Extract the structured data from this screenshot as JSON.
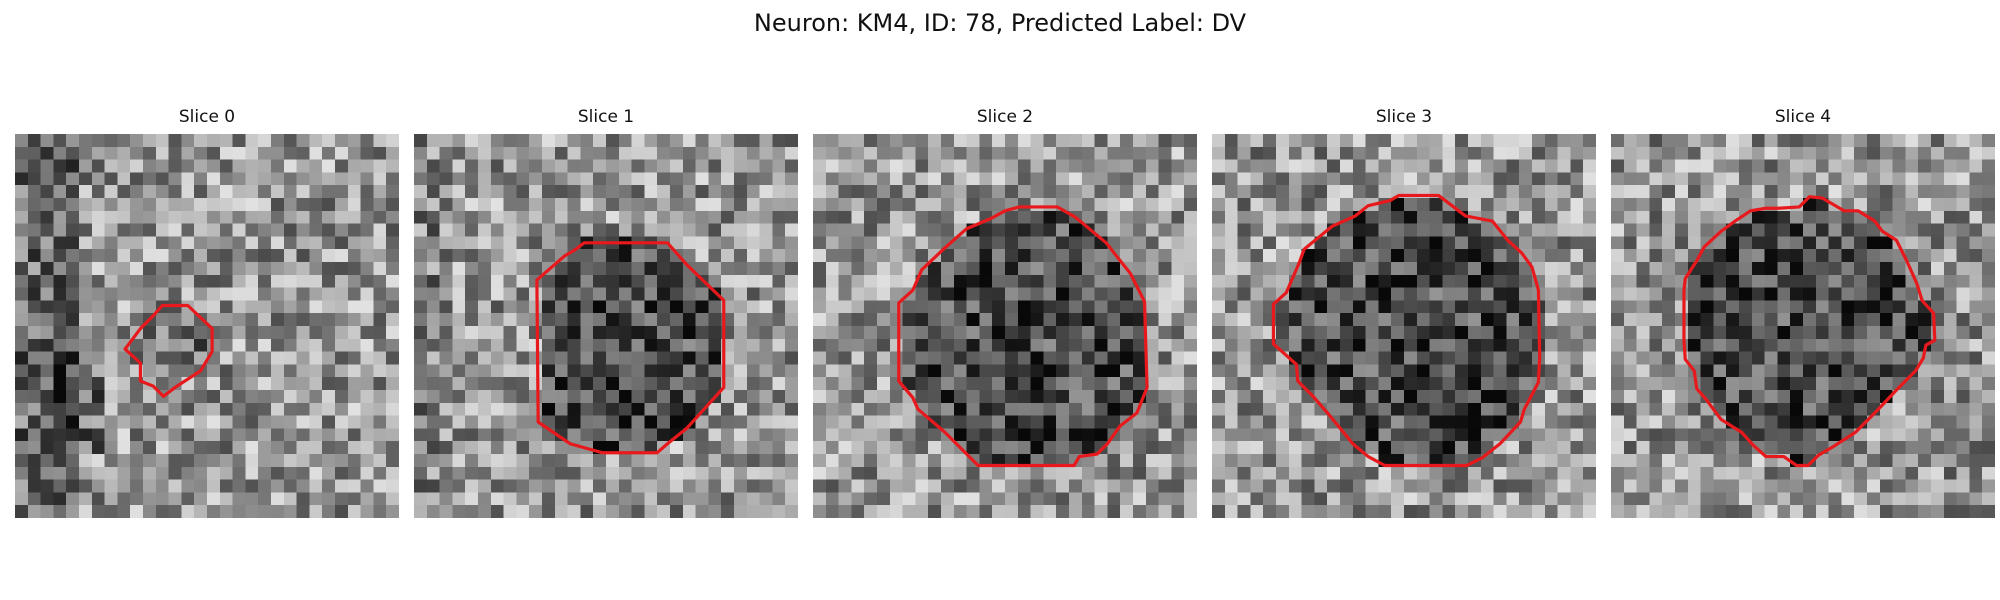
{
  "figure": {
    "title": "Neuron: KM4, ID: 78, Predicted Label: DV"
  },
  "panels": [
    {
      "title": "Slice 0"
    },
    {
      "title": "Slice 1"
    },
    {
      "title": "Slice 2"
    },
    {
      "title": "Slice 3"
    },
    {
      "title": "Slice 4"
    }
  ],
  "colors": {
    "contour": "#e8191c",
    "background": "#ffffff"
  }
}
